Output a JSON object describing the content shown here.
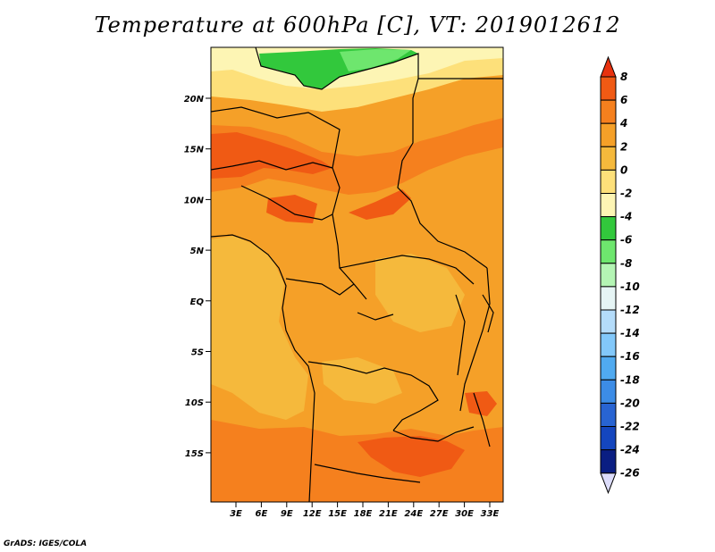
{
  "title": "Temperature at 600hPa [C], VT: 2019012612",
  "credit": "GrADS: IGES/COLA",
  "lat_labels": [
    "20N",
    "15N",
    "10N",
    "5N",
    "EQ",
    "5S",
    "10S",
    "15S"
  ],
  "lon_labels": [
    "3E",
    "6E",
    "9E",
    "12E",
    "15E",
    "18E",
    "21E",
    "24E",
    "27E",
    "30E",
    "33E"
  ],
  "colorbar": {
    "labels": [
      "8",
      "6",
      "4",
      "2",
      "0",
      "-2",
      "-4",
      "-6",
      "-8",
      "-10",
      "-12",
      "-14",
      "-16",
      "-18",
      "-20",
      "-22",
      "-24",
      "-26"
    ],
    "colors": [
      "#e8320f",
      "#f05a14",
      "#f5801e",
      "#f5a028",
      "#f5b93c",
      "#fde07a",
      "#fdf5b4",
      "#32c83c",
      "#6ee66e",
      "#b4f5b4",
      "#e6f5f5",
      "#b4dcfa",
      "#82c8fa",
      "#50aaf0",
      "#3c8ce6",
      "#2864d2",
      "#1446be",
      "#0a1e82",
      "#dcdcfa"
    ]
  }
}
